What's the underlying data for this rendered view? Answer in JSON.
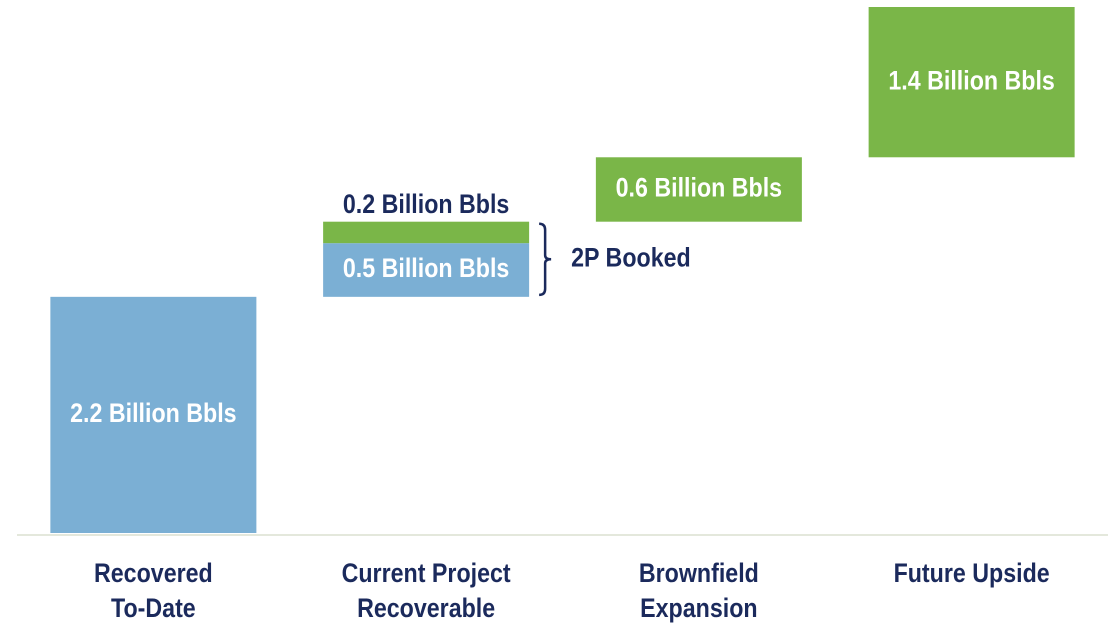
{
  "chart_data": {
    "type": "waterfall",
    "categories": [
      "Recovered\nTo-Date",
      "Current Project\nRecoverable",
      "Brownfield\nExpansion",
      "Future Upside"
    ],
    "series": [
      {
        "color": "#7bafd4",
        "values": [
          2.2,
          0.5,
          null,
          null
        ],
        "value_labels": [
          "2.2 Billion Bbls",
          "0.5 Billion Bbls",
          null,
          null
        ]
      },
      {
        "color": "#7ab648",
        "values": [
          null,
          0.2,
          0.6,
          1.4
        ],
        "value_labels": [
          null,
          "0.2 Billion Bbls",
          "0.6 Billion Bbls",
          "1.4 Billion Bbls"
        ]
      }
    ],
    "ylim": [
      0,
      4.9
    ],
    "annotations": [
      {
        "text": "2P Booked"
      }
    ]
  }
}
